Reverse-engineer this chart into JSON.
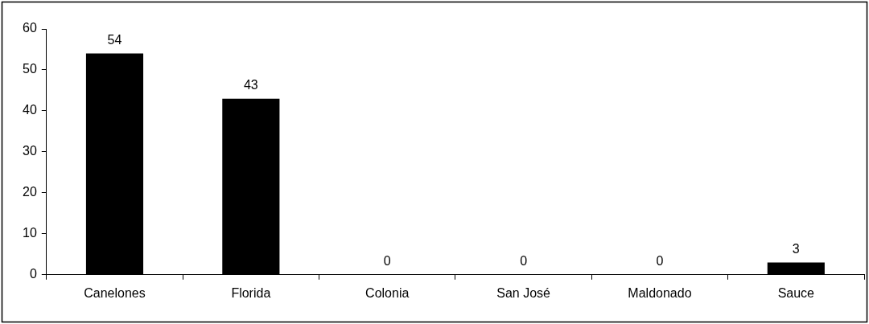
{
  "chart_data": {
    "type": "bar",
    "categories": [
      "Canelones",
      "Florida",
      "Colonia",
      "San José",
      "Maldonado",
      "Sauce"
    ],
    "values": [
      54,
      43,
      0,
      0,
      0,
      3
    ],
    "color": "#000000",
    "ylim": [
      0,
      60
    ],
    "yticks": [
      0,
      10,
      20,
      30,
      40,
      50,
      60
    ],
    "grid": false,
    "legend": false,
    "data_labels": true
  }
}
